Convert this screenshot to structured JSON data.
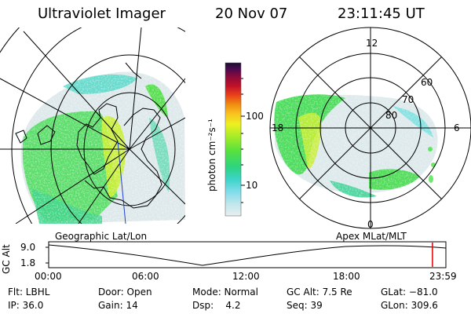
{
  "header": {
    "instrument": "Ultraviolet Imager",
    "date": "20 Nov 07",
    "time": "23:11:45 UT"
  },
  "left_map": {
    "label": "Geographic Lat/Lon"
  },
  "right_map": {
    "label": "Apex  MLat/MLT",
    "mlt_labels": [
      "12",
      "18",
      "6",
      "0"
    ],
    "lat_labels": [
      "60",
      "70",
      "80"
    ]
  },
  "colorbar": {
    "unit_label": "photon cm⁻²s⁻¹",
    "tick_labels": [
      "100",
      "10"
    ],
    "colors": [
      "#1a0e2e",
      "#30105a",
      "#5a0a4a",
      "#8a0a2a",
      "#c0102a",
      "#e8401a",
      "#f08a10",
      "#f8c020",
      "#f0f020",
      "#b8f020",
      "#60e840",
      "#30d890",
      "#40d8d8",
      "#9ae8f0",
      "#dfeef2"
    ]
  },
  "timeline": {
    "y_axis_label": "GC Alt",
    "y_ticks": [
      "9.0",
      "1.8"
    ],
    "x_ticks": [
      "00:00",
      "06:00",
      "12:00",
      "18:00",
      "23:59"
    ],
    "current_time_fraction": 0.9663
  },
  "footer": {
    "row1": [
      "Flt: LBHL",
      "Door: Open",
      "Mode: Normal",
      "GC Alt: 7.5 Re",
      "GLat: −81.0"
    ],
    "row2": [
      "IP: 36.0",
      "Gain: 14",
      "Dsp:    4.2",
      "Seq: 39",
      "GLon: 309.6"
    ]
  }
}
